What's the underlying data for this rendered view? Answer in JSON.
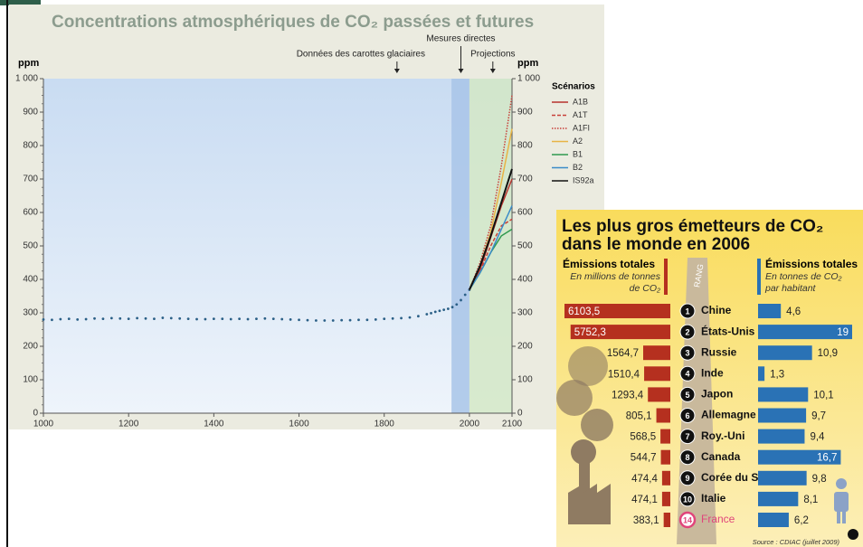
{
  "chart_data": [
    {
      "type": "line",
      "title": "Concentrations atmosphériques de CO₂ passées et futures",
      "ylabel": "ppm",
      "legend_title": "Scénarios",
      "annotations": [
        {
          "text": "Données des carottes glaciaires",
          "x": 1830
        },
        {
          "text": "Mesures directes",
          "x": 1980
        },
        {
          "text": "Projections",
          "x": 2055
        }
      ],
      "bands": [
        {
          "from": 1958,
          "to": 2000,
          "color": "#a8c4e8"
        },
        {
          "from": 2000,
          "to": 2100,
          "color": "#d3e8c6"
        }
      ],
      "color": "#2a5f86",
      "x": [
        1000,
        1020,
        1040,
        1060,
        1080,
        1100,
        1120,
        1140,
        1160,
        1180,
        1200,
        1220,
        1240,
        1260,
        1280,
        1300,
        1320,
        1340,
        1360,
        1380,
        1400,
        1420,
        1440,
        1460,
        1480,
        1500,
        1520,
        1540,
        1560,
        1580,
        1600,
        1620,
        1640,
        1660,
        1680,
        1700,
        1720,
        1740,
        1760,
        1780,
        1800,
        1820,
        1840,
        1860,
        1880,
        1900,
        1910,
        1920,
        1930,
        1940,
        1950,
        1960,
        1970,
        1980,
        1990,
        2000
      ],
      "values": [
        280,
        279,
        281,
        282,
        280,
        281,
        283,
        282,
        284,
        283,
        282,
        284,
        283,
        282,
        285,
        284,
        283,
        282,
        281,
        281,
        282,
        282,
        281,
        282,
        281,
        282,
        283,
        282,
        281,
        280,
        279,
        278,
        277,
        277,
        277,
        278,
        278,
        279,
        279,
        280,
        282,
        283,
        284,
        286,
        290,
        296,
        299,
        303,
        306,
        309,
        312,
        317,
        325,
        338,
        354,
        369
      ],
      "series": [
        {
          "name": "A1B",
          "color": "#b8322e",
          "dash": "solid",
          "x": [
            2000,
            2025,
            2050,
            2075,
            2100
          ],
          "values": [
            369,
            430,
            525,
            620,
            700
          ]
        },
        {
          "name": "A1T",
          "color": "#c8413a",
          "dash": "dashed",
          "x": [
            2000,
            2025,
            2050,
            2075,
            2100
          ],
          "values": [
            369,
            425,
            500,
            560,
            580
          ]
        },
        {
          "name": "A1FI",
          "color": "#c8413a",
          "dash": "dotted",
          "x": [
            2000,
            2025,
            2050,
            2075,
            2100
          ],
          "values": [
            369,
            450,
            560,
            740,
            950
          ]
        },
        {
          "name": "A2",
          "color": "#e8b445",
          "dash": "solid",
          "x": [
            2000,
            2025,
            2050,
            2075,
            2100
          ],
          "values": [
            369,
            440,
            540,
            690,
            850
          ]
        },
        {
          "name": "B1",
          "color": "#2f9a4f",
          "dash": "solid",
          "x": [
            2000,
            2025,
            2050,
            2075,
            2100
          ],
          "values": [
            369,
            420,
            480,
            530,
            550
          ]
        },
        {
          "name": "B2",
          "color": "#3a8bc8",
          "dash": "solid",
          "x": [
            2000,
            2025,
            2050,
            2075,
            2100
          ],
          "values": [
            369,
            420,
            480,
            550,
            620
          ]
        },
        {
          "name": "IS92a",
          "color": "#111111",
          "dash": "solid",
          "x": [
            2000,
            2025,
            2050,
            2075,
            2100
          ],
          "values": [
            369,
            440,
            530,
            630,
            730
          ]
        }
      ],
      "xlim": [
        1000,
        2100
      ],
      "xticks": [
        1000,
        1200,
        1400,
        1600,
        1800,
        2000,
        2100
      ],
      "ylim": [
        0,
        1000
      ],
      "yticks": [
        0,
        100,
        200,
        300,
        400,
        500,
        600,
        700,
        800,
        900,
        {
          "value": 1000,
          "label": "1 000"
        }
      ]
    },
    {
      "type": "bar",
      "title": [
        "Les plus gros émetteurs de CO₂",
        "dans le monde en 2006"
      ],
      "rank_label": "RANG",
      "categories": [
        "Chine",
        "États-Unis",
        "Russie",
        "Inde",
        "Japon",
        "Allemagne",
        "Roy.-Uni",
        "Canada",
        "Corée du S.",
        "Italie",
        "France"
      ],
      "ranks": [
        1,
        2,
        3,
        4,
        5,
        6,
        7,
        8,
        9,
        10,
        14
      ],
      "category_colors": [
        "#111111",
        "#111111",
        "#111111",
        "#111111",
        "#111111",
        "#111111",
        "#111111",
        "#111111",
        "#111111",
        "#111111",
        "#e0457b"
      ],
      "series": [
        {
          "name": "Émissions totales",
          "unit": [
            "En millions de tonnes",
            "de CO₂"
          ],
          "color": "#b5301f",
          "values": [
            6103.5,
            5752.3,
            1564.7,
            1510.4,
            1293.4,
            805.1,
            568.5,
            544.7,
            474.4,
            474.1,
            383.1
          ],
          "value_labels": [
            "6103,5",
            "5752,3",
            "1564,7",
            "1510,4",
            "1293,4",
            "805,1",
            "568,5",
            "544,7",
            "474,4",
            "474,1",
            "383,1"
          ]
        },
        {
          "name": "Émissions totales",
          "unit": [
            "En tonnes de CO₂",
            "par habitant"
          ],
          "color": "#2a72b5",
          "values": [
            4.6,
            19,
            10.9,
            1.3,
            10.1,
            9.7,
            9.4,
            16.7,
            9.8,
            8.1,
            6.2
          ],
          "value_labels": [
            "4,6",
            "19",
            "10,9",
            "1,3",
            "10,1",
            "9,7",
            "9,4",
            "16,7",
            "9,8",
            "8,1",
            "6,2"
          ]
        }
      ],
      "source": "Source : CDIAC (juillet 2009)"
    }
  ]
}
